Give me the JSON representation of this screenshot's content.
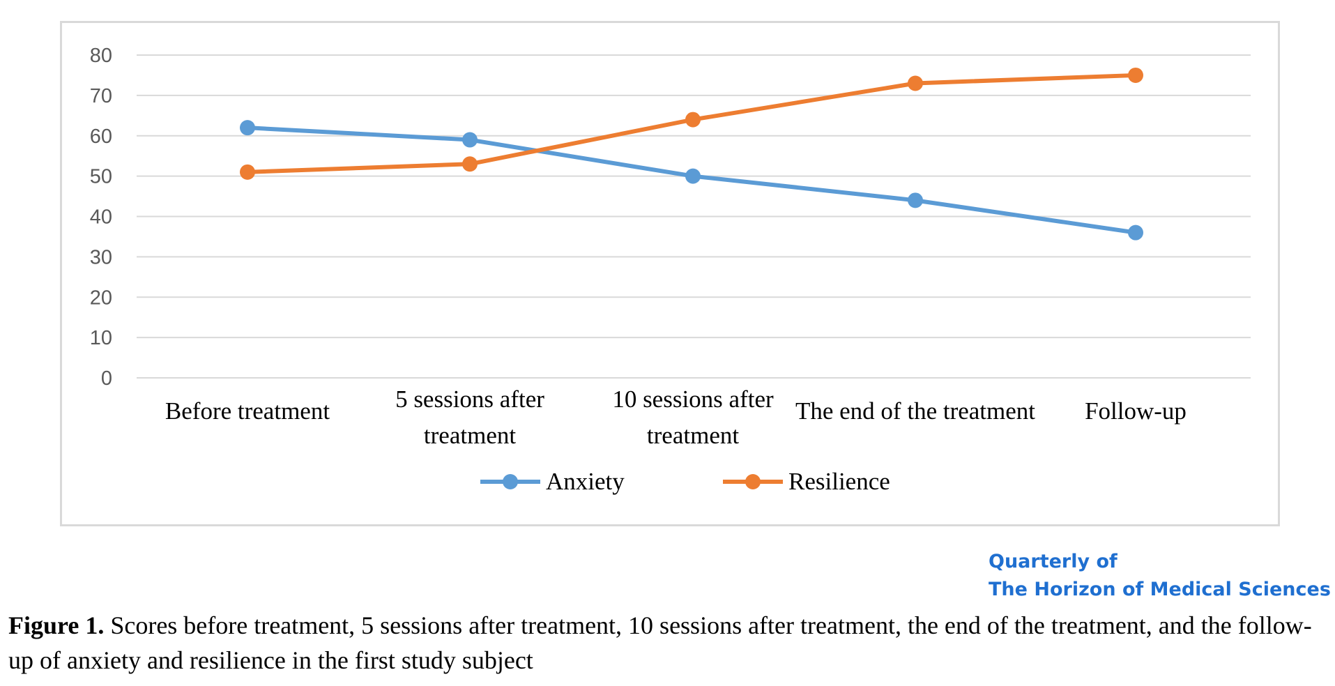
{
  "chart_data": {
    "type": "line",
    "categories": [
      [
        "Before treatment"
      ],
      [
        "5 sessions after",
        "treatment"
      ],
      [
        "10 sessions after",
        "treatment"
      ],
      [
        "The end of the treatment"
      ],
      [
        "Follow-up"
      ]
    ],
    "series": [
      {
        "name": "Anxiety",
        "values": [
          62,
          59,
          50,
          44,
          36
        ],
        "color": "#5b9bd5"
      },
      {
        "name": "Resilience",
        "values": [
          51,
          53,
          64,
          73,
          75
        ],
        "color": "#ed7d31"
      }
    ],
    "ylim": [
      0,
      80
    ],
    "yticks": [
      0,
      10,
      20,
      30,
      40,
      50,
      60,
      70,
      80
    ],
    "grid": true,
    "legend": "bottom",
    "gridline_color": "#d9d9d9",
    "axis_text_color": "#595959"
  },
  "journal": {
    "line1": "Quarterly of",
    "line2": "The Horizon of Medical Sciences",
    "color": "#1f6fd0"
  },
  "caption": {
    "label": "Figure 1.",
    "text": " Scores before treatment, 5 sessions after treatment, 10 sessions after treatment, the end of the treatment, and the follow-up of anxiety and resilience in the first study subject"
  }
}
